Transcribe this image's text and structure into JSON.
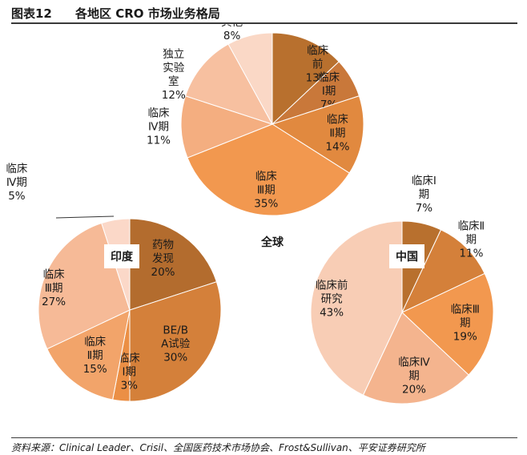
{
  "figure": {
    "number": "图表12",
    "title": "各地区 CRO 市场业务格局",
    "source": "资料来源：Clinical Leader、Crisil、全国医药技术市场协会、Frost&Sullivan、平安证券研究所"
  },
  "chart_data": [
    {
      "type": "pie",
      "title": "全球",
      "slices": [
        {
          "label": [
            "临床",
            "前"
          ],
          "value": 13,
          "color": "#b8702e"
        },
        {
          "label": [
            "临床",
            "Ⅰ期"
          ],
          "value": 7,
          "color": "#c9783a"
        },
        {
          "label": [
            "临床",
            "Ⅱ期"
          ],
          "value": 14,
          "color": "#e1893f"
        },
        {
          "label": [
            "临床",
            "Ⅲ期"
          ],
          "value": 35,
          "color": "#f2984f"
        },
        {
          "label": [
            "临床",
            "Ⅳ期"
          ],
          "value": 11,
          "color": "#f4ae80"
        },
        {
          "label": [
            "独立",
            "实验",
            "室"
          ],
          "value": 12,
          "color": "#f7c0a0"
        },
        {
          "label": [
            "其他"
          ],
          "value": 8,
          "color": "#fad8c6"
        }
      ]
    },
    {
      "type": "pie",
      "title": "印度",
      "slices": [
        {
          "label": [
            "药物",
            "发现"
          ],
          "value": 20,
          "color": "#b36c2e"
        },
        {
          "label": [
            "BE/B",
            "A试验"
          ],
          "value": 30,
          "color": "#d4803a"
        },
        {
          "label": [
            "临床",
            "Ⅰ期"
          ],
          "value": 3,
          "color": "#eb8f45"
        },
        {
          "label": [
            "临床",
            "Ⅱ期"
          ],
          "value": 15,
          "color": "#f2a46a"
        },
        {
          "label": [
            "临床",
            "Ⅲ期"
          ],
          "value": 27,
          "color": "#f6ba97"
        },
        {
          "label": [
            "临床",
            "Ⅳ期"
          ],
          "value": 5,
          "color": "#fbd8c8"
        }
      ]
    },
    {
      "type": "pie",
      "title": "中国",
      "slices": [
        {
          "label": [
            "临床Ⅰ",
            "期"
          ],
          "value": 7,
          "color": "#b8702e"
        },
        {
          "label": [
            "临床Ⅱ",
            "期"
          ],
          "value": 11,
          "color": "#d4803a"
        },
        {
          "label": [
            "临床Ⅲ",
            "期"
          ],
          "value": 19,
          "color": "#f2984f"
        },
        {
          "label": [
            "临床Ⅳ",
            "期"
          ],
          "value": 20,
          "color": "#f4b48e"
        },
        {
          "label": [
            "临床前",
            "研究"
          ],
          "value": 43,
          "color": "#f8cdb5"
        }
      ]
    }
  ]
}
